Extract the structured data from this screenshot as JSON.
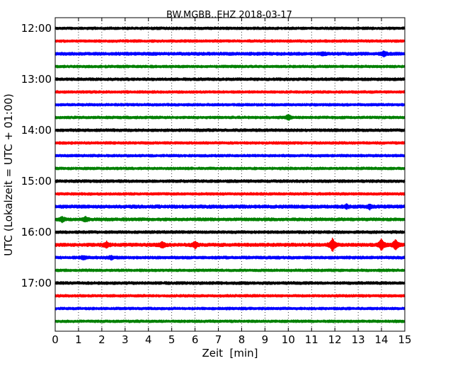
{
  "chart_data": {
    "type": "line",
    "title": "BW.MGBB..EHZ 2018-03-17",
    "xlabel": "Zeit  [min]",
    "ylabel": "UTC (Lokalzeit = UTC + 01:00)",
    "xlim": [
      0,
      15
    ],
    "x_ticks": [
      "0",
      "1",
      "2",
      "3",
      "4",
      "5",
      "6",
      "7",
      "8",
      "9",
      "10",
      "11",
      "12",
      "13",
      "14",
      "15"
    ],
    "y_ticks": [
      "12:00",
      "13:00",
      "14:00",
      "15:00",
      "16:00",
      "17:00"
    ],
    "grid": "vertical dotted",
    "trace_color_cycle": [
      "#000000",
      "#ff0000",
      "#0000ff",
      "#008000"
    ],
    "traces": [
      {
        "start": "12:00",
        "amplitude": 1.0,
        "events": []
      },
      {
        "start": "12:15",
        "amplitude": 1.0,
        "events": []
      },
      {
        "start": "12:30",
        "amplitude": 1.2,
        "events": [
          {
            "minute": 14.1,
            "size": 2.5
          },
          {
            "minute": 11.5,
            "size": 1.6
          }
        ]
      },
      {
        "start": "12:45",
        "amplitude": 1.0,
        "events": []
      },
      {
        "start": "13:00",
        "amplitude": 1.1,
        "events": []
      },
      {
        "start": "13:15",
        "amplitude": 1.0,
        "events": []
      },
      {
        "start": "13:30",
        "amplitude": 1.0,
        "events": []
      },
      {
        "start": "13:45",
        "amplitude": 1.0,
        "events": [
          {
            "minute": 10.0,
            "size": 3.0
          }
        ]
      },
      {
        "start": "14:00",
        "amplitude": 1.1,
        "events": []
      },
      {
        "start": "14:15",
        "amplitude": 1.0,
        "events": []
      },
      {
        "start": "14:30",
        "amplitude": 1.0,
        "events": []
      },
      {
        "start": "14:45",
        "amplitude": 1.0,
        "events": []
      },
      {
        "start": "15:00",
        "amplitude": 1.1,
        "events": []
      },
      {
        "start": "15:15",
        "amplitude": 1.0,
        "events": []
      },
      {
        "start": "15:30",
        "amplitude": 1.3,
        "events": [
          {
            "minute": 13.5,
            "size": 2.6
          },
          {
            "minute": 12.5,
            "size": 2.0
          }
        ]
      },
      {
        "start": "15:45",
        "amplitude": 1.2,
        "events": [
          {
            "minute": 0.3,
            "size": 2.8
          },
          {
            "minute": 1.3,
            "size": 2.6
          }
        ]
      },
      {
        "start": "16:00",
        "amplitude": 1.1,
        "events": []
      },
      {
        "start": "16:15",
        "amplitude": 1.3,
        "events": [
          {
            "minute": 2.2,
            "size": 3.5
          },
          {
            "minute": 4.6,
            "size": 3.5
          },
          {
            "minute": 6.0,
            "size": 4.0
          },
          {
            "minute": 11.9,
            "size": 8.5
          },
          {
            "minute": 14.0,
            "size": 7.5
          },
          {
            "minute": 14.6,
            "size": 6.5
          }
        ]
      },
      {
        "start": "16:30",
        "amplitude": 1.1,
        "events": [
          {
            "minute": 1.2,
            "size": 2.0
          },
          {
            "minute": 2.4,
            "size": 2.0
          }
        ]
      },
      {
        "start": "16:45",
        "amplitude": 1.0,
        "events": []
      },
      {
        "start": "17:00",
        "amplitude": 1.1,
        "events": []
      },
      {
        "start": "17:15",
        "amplitude": 1.0,
        "events": []
      },
      {
        "start": "17:30",
        "amplitude": 1.0,
        "events": []
      },
      {
        "start": "17:45",
        "amplitude": 1.0,
        "events": []
      }
    ]
  }
}
